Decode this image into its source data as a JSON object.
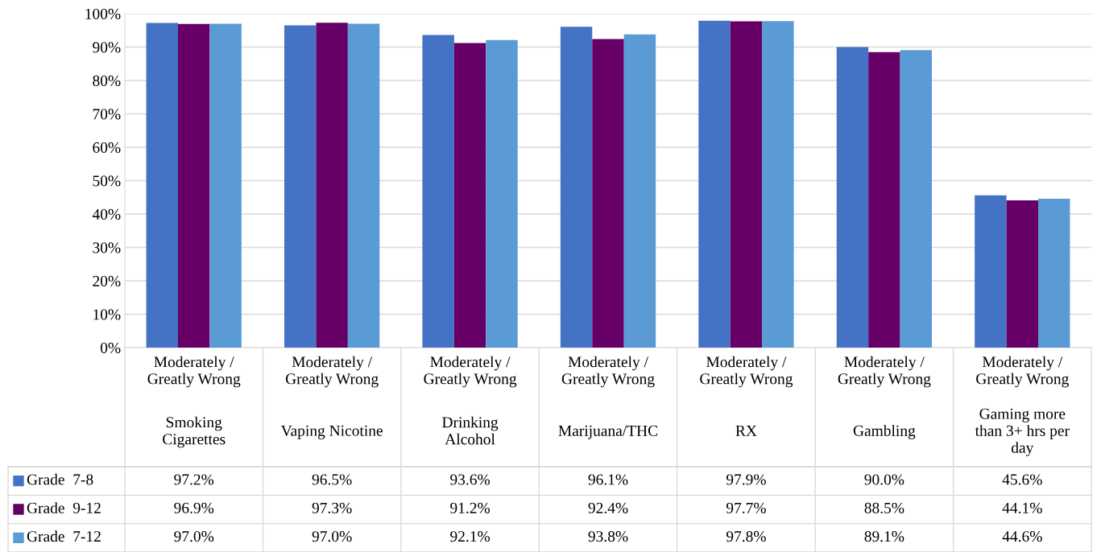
{
  "chart_data": {
    "type": "bar",
    "categories": [
      "Moderately /\nGreatly Wrong\n\nSmoking\nCigarettes",
      "Moderately /\nGreatly Wrong\n\nVaping Nicotine",
      "Moderately /\nGreatly Wrong\n\nDrinking\nAlcohol",
      "Moderately /\nGreatly Wrong\n\nMarijuana/THC",
      "Moderately /\nGreatly Wrong\n\nRX",
      "Moderately /\nGreatly Wrong\n\nGambling",
      "Moderately /\nGreatly Wrong\n\nGaming more\nthan 3+ hrs per\nday"
    ],
    "series": [
      {
        "name": "Grade  7-8",
        "color": "#4472c4",
        "values": [
          97.2,
          96.5,
          93.6,
          96.1,
          97.9,
          90.0,
          45.6
        ],
        "value_labels": [
          "97.2%",
          "96.5%",
          "93.6%",
          "96.1%",
          "97.9%",
          "90.0%",
          "45.6%"
        ]
      },
      {
        "name": "Grade  9-12",
        "color": "#660066",
        "values": [
          96.9,
          97.3,
          91.2,
          92.4,
          97.7,
          88.5,
          44.1
        ],
        "value_labels": [
          "96.9%",
          "97.3%",
          "91.2%",
          "92.4%",
          "97.7%",
          "88.5%",
          "44.1%"
        ]
      },
      {
        "name": "Grade  7-12",
        "color": "#5b9bd5",
        "values": [
          97.0,
          97.0,
          92.1,
          93.8,
          97.8,
          89.1,
          44.6
        ],
        "value_labels": [
          "97.0%",
          "97.0%",
          "92.1%",
          "93.8%",
          "97.8%",
          "89.1%",
          "44.6%"
        ]
      }
    ],
    "ylim": [
      0,
      100
    ],
    "yticks": [
      {
        "value": 0,
        "label": "0%"
      },
      {
        "value": 10,
        "label": "10%"
      },
      {
        "value": 20,
        "label": "20%"
      },
      {
        "value": 30,
        "label": "30%"
      },
      {
        "value": 40,
        "label": "40%"
      },
      {
        "value": 50,
        "label": "50%"
      },
      {
        "value": 60,
        "label": "60%"
      },
      {
        "value": 70,
        "label": "70%"
      },
      {
        "value": 80,
        "label": "80%"
      },
      {
        "value": 90,
        "label": "90%"
      },
      {
        "value": 100,
        "label": "100%"
      }
    ],
    "grid": "y",
    "legend": "bottom"
  }
}
